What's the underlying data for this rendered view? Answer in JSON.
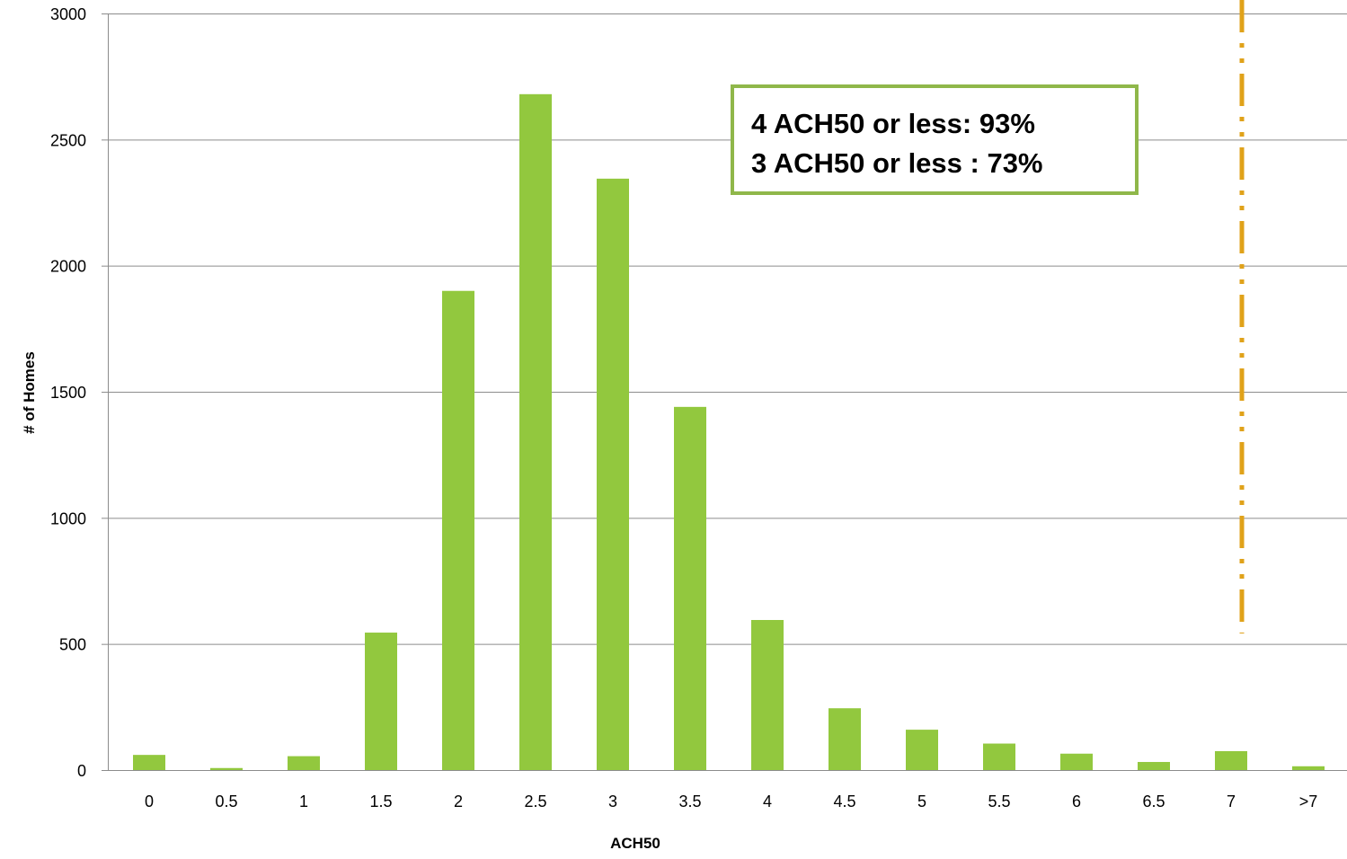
{
  "chart_data": {
    "type": "bar",
    "title": "",
    "xlabel": "ACH50",
    "ylabel": "# of Homes",
    "categories": [
      "0",
      "0.5",
      "1",
      "1.5",
      "2",
      "2.5",
      "3",
      "3.5",
      "4",
      "4.5",
      "5",
      "5.5",
      "6",
      "6.5",
      "7",
      ">7"
    ],
    "values": [
      60,
      8,
      55,
      545,
      1900,
      2680,
      2345,
      1440,
      595,
      245,
      160,
      105,
      65,
      32,
      75,
      15
    ],
    "ylim": [
      0,
      3000
    ],
    "yticks": [
      0,
      500,
      1000,
      1500,
      2000,
      2500,
      3000
    ],
    "grid": "horizontal",
    "legend": "none",
    "bar_color": "#92c83e",
    "annotations": {
      "box_lines": [
        "4 ACH50 or less: 93%",
        "3 ACH50 or less : 73%"
      ],
      "box_border_color": "#8fb74a",
      "reference_line": {
        "x_category": "7",
        "style": "dash-dot",
        "color": "#e0a21a"
      }
    }
  }
}
